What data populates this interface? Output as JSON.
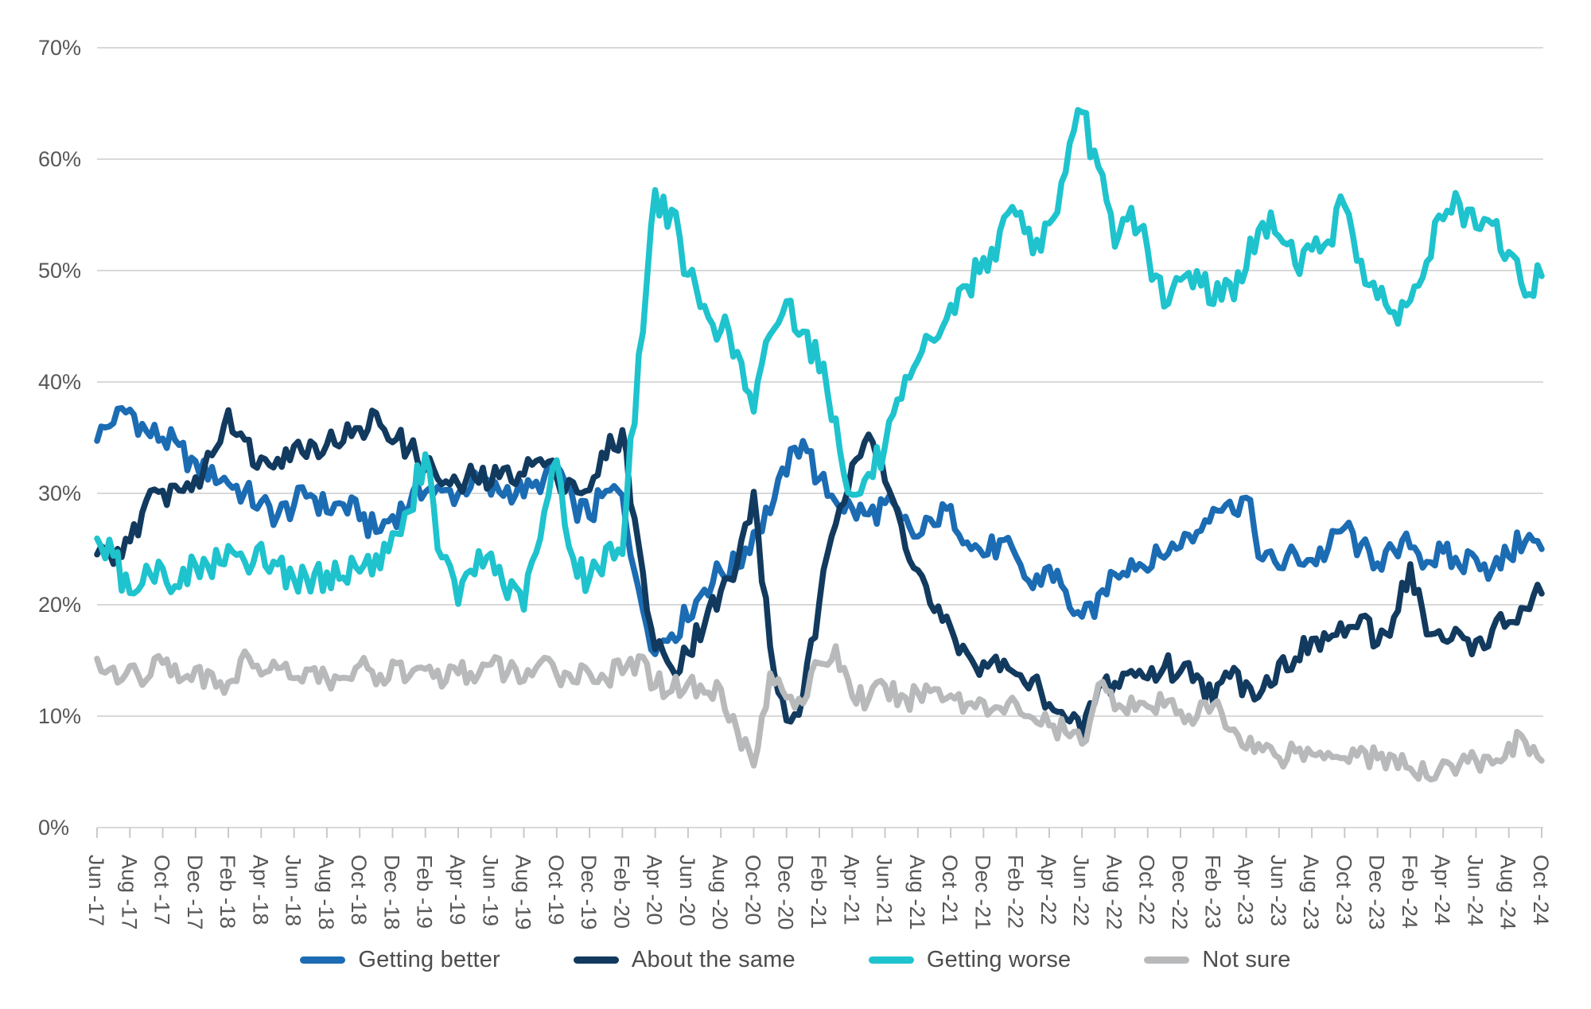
{
  "chart_data": {
    "type": "line",
    "title": "",
    "xlabel": "",
    "ylabel": "",
    "ylim": [
      0,
      70
    ],
    "y_tick_labels": [
      "0%",
      "10%",
      "20%",
      "30%",
      "40%",
      "50%",
      "60%",
      "70%"
    ],
    "grid": "horizontal",
    "legend_position": "bottom",
    "x_tick_labels": [
      "Jun -17",
      "Aug -17",
      "Oct -17",
      "Dec -17",
      "Feb -18",
      "Apr -18",
      "Jun -18",
      "Aug -18",
      "Oct -18",
      "Dec -18",
      "Feb -19",
      "Apr -19",
      "Jun -19",
      "Aug -19",
      "Oct -19",
      "Dec -19",
      "Feb -20",
      "Apr -20",
      "Jun -20",
      "Aug -20",
      "Oct -20",
      "Dec -20",
      "Feb -21",
      "Apr -21",
      "Jun -21",
      "Aug -21",
      "Oct -21",
      "Dec -21",
      "Feb -22",
      "Apr -22",
      "Jun -22",
      "Aug -22",
      "Oct -22",
      "Dec -22",
      "Feb -23",
      "Apr -23",
      "Jun -23",
      "Aug -23",
      "Oct -23",
      "Dec -23",
      "Feb -24",
      "Apr -24",
      "Jun -24",
      "Aug -24",
      "Oct -24"
    ],
    "months_per_point": 1,
    "series": [
      {
        "name": "Getting better",
        "color": "#1b6cb3",
        "jitter": 1.3,
        "values": [
          35,
          36.5,
          37.5,
          35.5,
          35,
          34,
          32.5,
          32,
          31,
          30,
          29,
          28,
          29,
          30,
          28.5,
          29,
          28,
          26.5,
          28,
          29,
          30.5,
          30,
          30,
          31.5,
          30,
          30.5,
          30,
          30.5,
          32.5,
          29,
          28,
          30,
          30,
          21,
          16,
          17.5,
          19,
          21.5,
          23,
          23.5,
          26.5,
          28.5,
          32,
          35,
          31,
          29.5,
          28.5,
          28,
          29,
          27.5,
          26,
          27.5,
          28.5,
          26,
          24.5,
          25.5,
          24,
          21.5,
          23.5,
          21,
          18.5,
          20.5,
          23,
          24,
          23.5,
          24.5,
          25.5,
          26.5,
          29,
          29,
          29.5,
          24,
          23.5,
          24.5,
          24,
          25,
          27,
          25,
          24,
          24.5,
          25.5,
          24,
          24.5,
          23.5,
          24.5,
          23,
          24.5,
          26,
          25
        ]
      },
      {
        "name": "About the same",
        "color": "#123a5f",
        "jitter": 1.3,
        "values": [
          24.5,
          23.5,
          26,
          29,
          30,
          30.5,
          31,
          33.5,
          37.5,
          34.5,
          33,
          33.5,
          34,
          34.5,
          34.5,
          35,
          35.5,
          37,
          35,
          34,
          32.5,
          31,
          30.5,
          31.5,
          31,
          32,
          32,
          33,
          31.5,
          31,
          30,
          33.5,
          35.5,
          25,
          16,
          14.5,
          16,
          18.5,
          21,
          23.5,
          30,
          16,
          9.5,
          11.5,
          20,
          27.5,
          33,
          35.5,
          31,
          27,
          23,
          19.5,
          17.5,
          15.5,
          14.5,
          14.5,
          13.5,
          13,
          11.5,
          9.5,
          8.5,
          12.5,
          13,
          14,
          13.5,
          14.5,
          14,
          14,
          11.5,
          13.5,
          13,
          12.5,
          14.5,
          15.5,
          16.5,
          17,
          17.5,
          18.5,
          16.5,
          19,
          23.5,
          17.5,
          16.5,
          17.5,
          16.5,
          17.5,
          18.5,
          19.5,
          21
        ]
      },
      {
        "name": "Getting worse",
        "color": "#1ec3cd",
        "jitter": 1.6,
        "values": [
          25.5,
          24,
          21,
          24,
          23,
          21.5,
          23.5,
          23,
          25,
          24,
          25,
          23.5,
          22.5,
          21.5,
          23,
          22.5,
          23.5,
          24,
          26,
          28,
          34,
          24,
          20.5,
          23,
          24.5,
          21,
          20,
          26,
          33,
          24,
          22,
          25,
          25,
          42,
          57,
          55,
          49.5,
          46.5,
          45,
          42.5,
          37,
          44.5,
          47,
          45,
          41.5,
          36.5,
          29.5,
          31.5,
          34,
          38,
          41.5,
          44,
          46.5,
          48.5,
          51,
          53,
          55.5,
          52,
          54,
          58.5,
          64.5,
          59,
          52,
          55.5,
          52,
          46.5,
          49,
          50,
          47.5,
          48.5,
          50.5,
          54,
          53.5,
          51,
          51.5,
          53,
          56,
          51,
          47,
          46.5,
          47,
          51,
          55,
          55.5,
          53.5,
          54,
          51.5,
          48,
          49.5
        ]
      },
      {
        "name": "Not sure",
        "color": "#b8b9ba",
        "jitter": 1.2,
        "values": [
          15.5,
          14,
          14.5,
          13.5,
          14.5,
          13.5,
          14,
          13.5,
          13,
          15.5,
          14,
          14.5,
          13.5,
          14.5,
          13,
          13.5,
          14.5,
          13,
          14.5,
          13.5,
          14.5,
          13,
          14,
          13.5,
          14.5,
          14,
          13.5,
          14.5,
          14,
          13.5,
          14,
          13.5,
          14,
          15,
          13,
          12.5,
          13,
          12,
          12.5,
          9,
          5.5,
          13.5,
          12,
          11.5,
          14.5,
          16,
          12,
          11.5,
          12.5,
          11.5,
          12,
          12.5,
          12,
          11,
          11.5,
          10.5,
          11,
          10,
          9,
          8.5,
          7.5,
          13,
          11,
          11.5,
          10.5,
          11,
          10.5,
          10,
          11,
          9,
          7.5,
          7,
          6.5,
          7,
          6.5,
          7,
          6.5,
          7,
          6,
          6.5,
          5,
          4.5,
          6,
          5.5,
          6,
          5.5,
          7.5,
          8,
          6
        ]
      }
    ],
    "colors": {
      "gridline": "#d9d9d9",
      "tick": "#c9c9c9",
      "axis_label": "#575757"
    }
  },
  "legend": {
    "items": [
      "Getting better",
      "About the same",
      "Getting worse",
      "Not sure"
    ]
  }
}
